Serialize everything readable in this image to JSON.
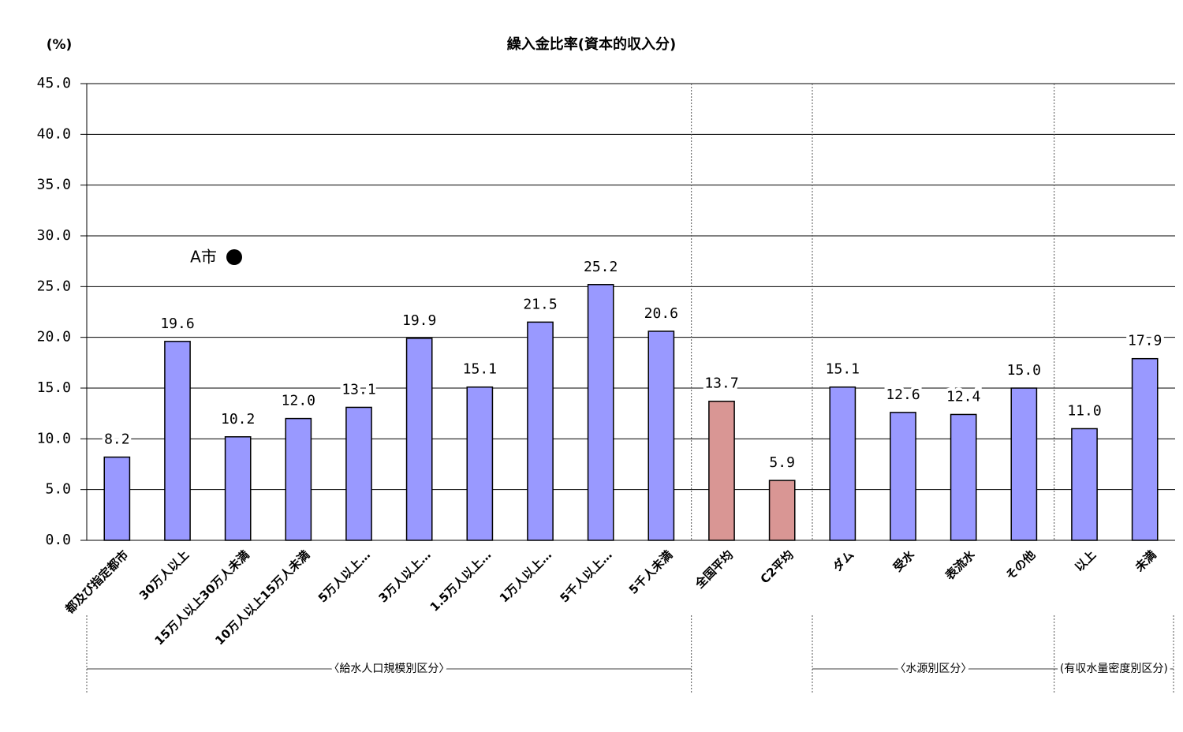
{
  "chart_data": {
    "type": "bar",
    "title": "繰入金比率(資本的収入分)",
    "y_label": "(%)",
    "annotation": "A市",
    "categories": [
      "都及び指定都市",
      "30万人以上",
      "15万人以上30万人未満",
      "10万人以上15万人未満",
      "5万人以上…",
      "3万人以上…",
      "1.5万人以上…",
      "1万人以上…",
      "5千人以上…",
      "5千人未満",
      "全国平均",
      "C2平均",
      "ダム",
      "受水",
      "表流水",
      "その他",
      "以上",
      "未満"
    ],
    "values": [
      8.2,
      19.6,
      10.2,
      12.0,
      13.1,
      19.9,
      15.1,
      21.5,
      25.2,
      20.6,
      13.7,
      5.9,
      15.1,
      12.6,
      12.4,
      15.0,
      11.0,
      17.9
    ],
    "value_labels": [
      "8.2",
      "19.6",
      "10.2",
      "12.0",
      "13.1",
      "19.9",
      "15.1",
      "21.5",
      "25.2",
      "20.6",
      "13.7",
      "5.9",
      "15.1",
      "12.6",
      "12.4",
      "15.0",
      "11.0",
      "17.9"
    ],
    "colors": [
      "#9999ff",
      "#9999ff",
      "#9999ff",
      "#9999ff",
      "#9999ff",
      "#9999ff",
      "#9999ff",
      "#9999ff",
      "#9999ff",
      "#9999ff",
      "#d99694",
      "#d99694",
      "#9999ff",
      "#9999ff",
      "#9999ff",
      "#9999ff",
      "#9999ff",
      "#9999ff"
    ],
    "ylim": [
      0,
      45
    ],
    "yticks": [
      {
        "value": 0,
        "label": "0.0"
      },
      {
        "value": 5,
        "label": "5.0"
      },
      {
        "value": 10,
        "label": "10.0"
      },
      {
        "value": 15,
        "label": "15.0"
      },
      {
        "value": 20,
        "label": "20.0"
      },
      {
        "value": 25,
        "label": "25.0"
      },
      {
        "value": 30,
        "label": "30.0"
      },
      {
        "value": 35,
        "label": "35.0"
      },
      {
        "value": 40,
        "label": "40.0"
      },
      {
        "value": 45,
        "label": "45.0"
      }
    ],
    "grid": true,
    "groups": [
      "〈給水人口規模別区分〉",
      "〈水源別区分〉",
      "(有収水量密度別区分)"
    ]
  }
}
